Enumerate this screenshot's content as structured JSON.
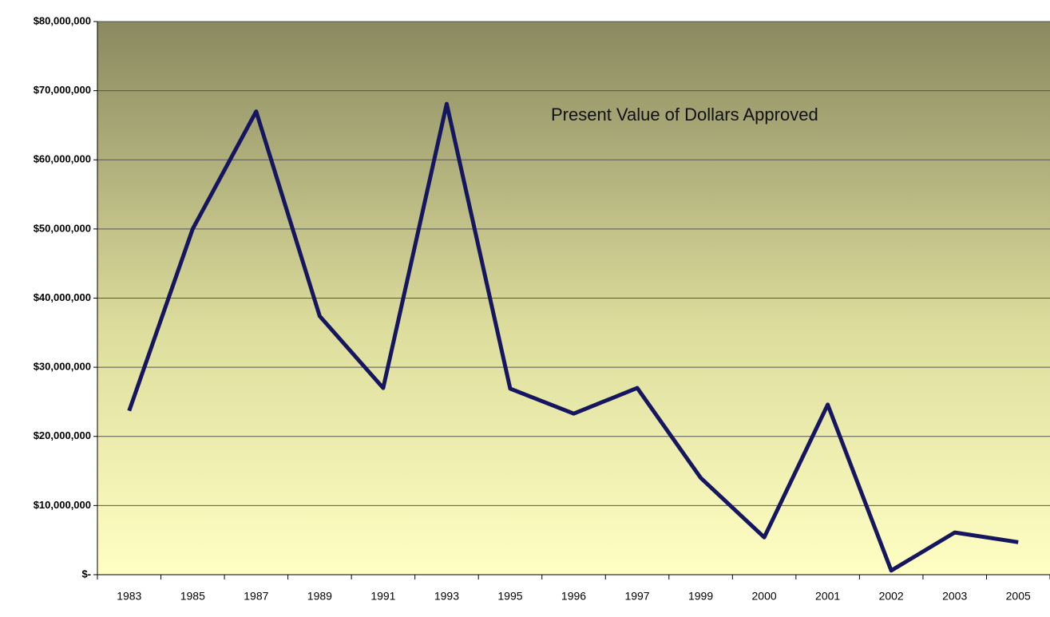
{
  "chart_data": {
    "type": "line",
    "annotation": "Present Value of Dollars Approved",
    "categories": [
      "1983",
      "1985",
      "1987",
      "1989",
      "1991",
      "1993",
      "1995",
      "1996",
      "1997",
      "1999",
      "2000",
      "2001",
      "2002",
      "2003",
      "2005"
    ],
    "series": [
      {
        "name": "Present Value of Dollars Approved",
        "color": "#161660",
        "values": [
          23700000,
          50000000,
          67000000,
          37400000,
          27000000,
          68100000,
          26900000,
          23300000,
          27000000,
          14000000,
          5400000,
          24600000,
          600000,
          6100000,
          4700000
        ]
      }
    ],
    "ylim": [
      0,
      80000000
    ],
    "yticks": [
      {
        "value": 0,
        "label": "$-"
      },
      {
        "value": 10000000,
        "label": "$10,000,000"
      },
      {
        "value": 20000000,
        "label": "$20,000,000"
      },
      {
        "value": 30000000,
        "label": "$30,000,000"
      },
      {
        "value": 40000000,
        "label": "$40,000,000"
      },
      {
        "value": 50000000,
        "label": "$50,000,000"
      },
      {
        "value": 60000000,
        "label": "$60,000,000"
      },
      {
        "value": 70000000,
        "label": "$70,000,000"
      },
      {
        "value": 80000000,
        "label": "$80,000,000"
      }
    ],
    "grid": true
  }
}
